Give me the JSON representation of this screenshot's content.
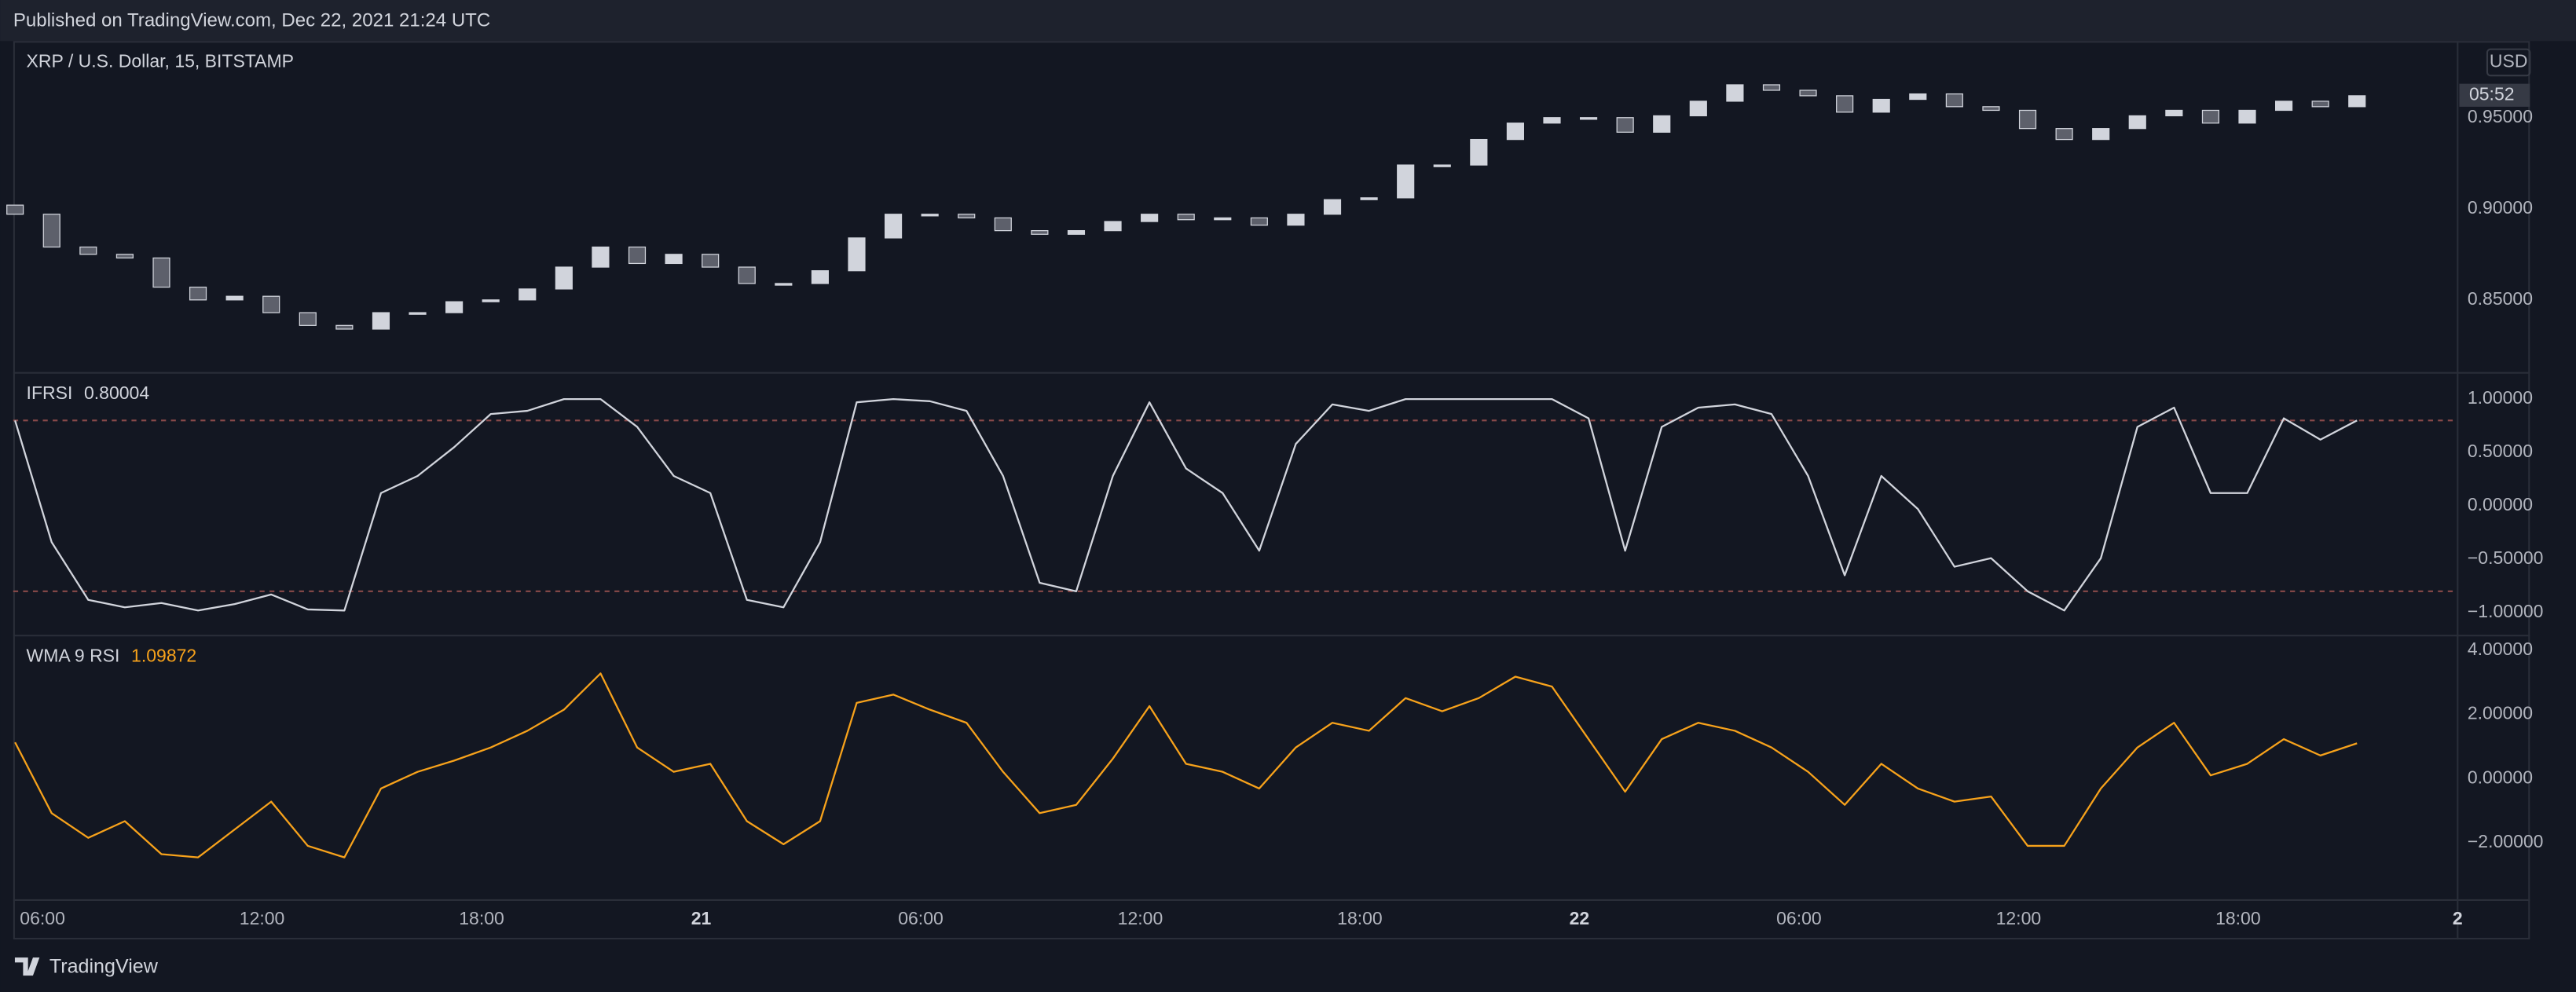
{
  "header": {
    "published": "Published on TradingView.com, Dec 22, 2021 21:24 UTC"
  },
  "footer": {
    "brand": "TradingView"
  },
  "chart_data": [
    {
      "type": "candlestick",
      "title": "XRP / U.S. Dollar, 15, BITSTAMP",
      "currency": "USD",
      "countdown": "05:52",
      "up_color": "#d1d4dc",
      "down_color": "#5d606b",
      "x": [
        5.25,
        6.25,
        7.25,
        8.25,
        9.25,
        10.25,
        11.25,
        12.25,
        13.25,
        14.25,
        15.25,
        16.25,
        17.25,
        18.25,
        19.25,
        20.25,
        21.25,
        22.25,
        23.25,
        24.25,
        25.25,
        26.25,
        27.25,
        28.25,
        29.25,
        30.25,
        31.25,
        32.25,
        33.25,
        34.25,
        35.25,
        36.25,
        37.25,
        38.25,
        39.25,
        40.25,
        41.25,
        42.25,
        43.25,
        44.25,
        45.25,
        46.25,
        47.25,
        48.25,
        49.25,
        50.25,
        51.25,
        52.25,
        53.25,
        54.25,
        55.25,
        56.25,
        57.25,
        58.25,
        59.25,
        60.25,
        61.25,
        62.25,
        63.25,
        64.25,
        65.25,
        66.25,
        67.25,
        68.25,
        69.25
      ],
      "open": [
        0.902,
        0.897,
        0.879,
        0.875,
        0.873,
        0.857,
        0.85,
        0.852,
        0.843,
        0.836,
        0.834,
        0.843,
        0.843,
        0.849,
        0.85,
        0.856,
        0.868,
        0.879,
        0.87,
        0.875,
        0.868,
        0.859,
        0.859,
        0.866,
        0.884,
        0.897,
        0.897,
        0.895,
        0.888,
        0.886,
        0.888,
        0.893,
        0.897,
        0.894,
        0.895,
        0.891,
        0.897,
        0.905,
        0.906,
        0.924,
        0.924,
        0.938,
        0.947,
        0.95,
        0.95,
        0.942,
        0.951,
        0.959,
        0.968,
        0.965,
        0.962,
        0.953,
        0.96,
        0.963,
        0.956,
        0.954,
        0.944,
        0.938,
        0.944,
        0.951,
        0.954,
        0.947,
        0.954,
        0.959,
        0.956
      ],
      "close": [
        0.897,
        0.879,
        0.875,
        0.873,
        0.857,
        0.85,
        0.852,
        0.843,
        0.836,
        0.834,
        0.843,
        0.843,
        0.849,
        0.85,
        0.856,
        0.868,
        0.879,
        0.87,
        0.875,
        0.868,
        0.859,
        0.859,
        0.866,
        0.884,
        0.897,
        0.897,
        0.895,
        0.888,
        0.886,
        0.888,
        0.893,
        0.897,
        0.894,
        0.895,
        0.891,
        0.897,
        0.905,
        0.906,
        0.924,
        0.924,
        0.938,
        0.947,
        0.95,
        0.95,
        0.942,
        0.951,
        0.959,
        0.968,
        0.965,
        0.962,
        0.953,
        0.96,
        0.963,
        0.956,
        0.954,
        0.944,
        0.938,
        0.944,
        0.951,
        0.954,
        0.947,
        0.954,
        0.959,
        0.956,
        0.962
      ],
      "xlim": [
        5.2,
        72
      ],
      "ylim": [
        0.81,
        0.992
      ],
      "yticks": [
        {
          "value": 0.95,
          "label": "0.95000"
        },
        {
          "value": 0.9,
          "label": "0.90000"
        },
        {
          "value": 0.85,
          "label": "0.85000"
        }
      ]
    },
    {
      "type": "line",
      "title": "IFRSI",
      "last_value": 0.80004,
      "color": "#d1d4dc",
      "levels": [
        0.8,
        -0.8
      ],
      "level_color": "#8a4a4a",
      "x": [
        5.25,
        6.25,
        7.25,
        8.25,
        9.25,
        10.25,
        11.25,
        12.25,
        13.25,
        14.25,
        15.25,
        16.25,
        17.25,
        18.25,
        19.25,
        20.25,
        21.25,
        22.25,
        23.25,
        24.25,
        25.25,
        26.25,
        27.25,
        28.25,
        29.25,
        30.25,
        31.25,
        32.25,
        33.25,
        34.25,
        35.25,
        36.25,
        37.25,
        38.25,
        39.25,
        40.25,
        41.25,
        42.25,
        43.25,
        44.25,
        45.25,
        46.25,
        47.25,
        48.25,
        49.25,
        50.25,
        51.25,
        52.25,
        53.25,
        54.25,
        55.25,
        56.25,
        57.25,
        58.25,
        59.25,
        60.25,
        61.25,
        62.25,
        63.25,
        64.25,
        65.25,
        66.25,
        67.25,
        68.25,
        69.25
      ],
      "values": [
        0.8,
        -0.34,
        -0.88,
        -0.95,
        -0.91,
        -0.98,
        -0.92,
        -0.83,
        -0.97,
        -0.98,
        0.12,
        0.28,
        0.55,
        0.86,
        0.89,
        1.0,
        1.0,
        0.74,
        0.28,
        0.12,
        -0.88,
        -0.95,
        -0.34,
        0.97,
        1.0,
        0.98,
        0.89,
        0.28,
        -0.72,
        -0.8,
        0.28,
        0.97,
        0.35,
        0.12,
        -0.42,
        0.58,
        0.95,
        0.89,
        1.0,
        1.0,
        1.0,
        1.0,
        1.0,
        0.82,
        -0.42,
        0.74,
        0.92,
        0.95,
        0.86,
        0.28,
        -0.65,
        0.28,
        -0.03,
        -0.57,
        -0.49,
        -0.8,
        -0.98,
        -0.49,
        0.74,
        0.92,
        0.12,
        0.12,
        0.82,
        0.62,
        0.8
      ],
      "xlim": [
        5.2,
        72
      ],
      "ylim": [
        -1.215,
        1.246
      ],
      "yticks": [
        {
          "value": 1,
          "label": "1.00000"
        },
        {
          "value": 0.5,
          "label": "0.50000"
        },
        {
          "value": 0,
          "label": "0.00000"
        },
        {
          "value": -0.5,
          "label": "−0.50000"
        },
        {
          "value": -1,
          "label": "−1.00000"
        }
      ]
    },
    {
      "type": "line",
      "title": "WMA 9 RSI",
      "last_value": 1.09872,
      "color": "#f7a21b",
      "x": [
        5.25,
        6.25,
        7.25,
        8.25,
        9.25,
        10.25,
        11.25,
        12.25,
        13.25,
        14.25,
        15.25,
        16.25,
        17.25,
        18.25,
        19.25,
        20.25,
        21.25,
        22.25,
        23.25,
        24.25,
        25.25,
        26.25,
        27.25,
        28.25,
        29.25,
        30.25,
        31.25,
        32.25,
        33.25,
        34.25,
        35.25,
        36.25,
        37.25,
        38.25,
        39.25,
        40.25,
        41.25,
        42.25,
        43.25,
        44.25,
        45.25,
        46.25,
        47.25,
        48.25,
        49.25,
        50.25,
        51.25,
        52.25,
        53.25,
        54.25,
        55.25,
        56.25,
        57.25,
        58.25,
        59.25,
        60.25,
        61.25,
        62.25,
        63.25,
        64.25,
        65.25,
        66.25,
        67.25,
        68.25,
        69.25
      ],
      "values": [
        1.13,
        -1.08,
        -1.85,
        -1.33,
        -2.36,
        -2.46,
        -1.59,
        -0.72,
        -2.1,
        -2.46,
        -0.31,
        0.21,
        0.56,
        0.97,
        1.49,
        2.15,
        3.28,
        0.97,
        0.21,
        0.46,
        -1.33,
        -2.05,
        -1.33,
        2.36,
        2.62,
        2.15,
        1.74,
        0.21,
        -1.08,
        -0.82,
        0.62,
        2.26,
        0.46,
        0.21,
        -0.31,
        0.97,
        1.74,
        1.49,
        2.51,
        2.1,
        2.51,
        3.18,
        2.87,
        1.23,
        -0.41,
        1.23,
        1.74,
        1.49,
        0.97,
        0.21,
        -0.82,
        0.46,
        -0.31,
        -0.72,
        -0.56,
        -2.1,
        -2.1,
        -0.31,
        0.97,
        1.74,
        0.1,
        0.46,
        1.23,
        0.72,
        1.1
      ],
      "xlim": [
        5.2,
        72
      ],
      "ylim": [
        -3.79,
        4.46
      ],
      "yticks": [
        {
          "value": 4,
          "label": "4.00000"
        },
        {
          "value": 2,
          "label": "2.00000"
        },
        {
          "value": 0,
          "label": "0.00000"
        },
        {
          "value": -2,
          "label": "−2.00000"
        }
      ],
      "xticks": [
        {
          "value": 6,
          "label": "06:00"
        },
        {
          "value": 12,
          "label": "12:00"
        },
        {
          "value": 18,
          "label": "18:00"
        },
        {
          "value": 24,
          "label": "21"
        },
        {
          "value": 30,
          "label": "06:00"
        },
        {
          "value": 36,
          "label": "12:00"
        },
        {
          "value": 42,
          "label": "18:00"
        },
        {
          "value": 48,
          "label": "22"
        },
        {
          "value": 54,
          "label": "06:00"
        },
        {
          "value": 60,
          "label": "12:00"
        },
        {
          "value": 66,
          "label": "18:00"
        },
        {
          "value": 72,
          "label": "2"
        }
      ]
    }
  ]
}
